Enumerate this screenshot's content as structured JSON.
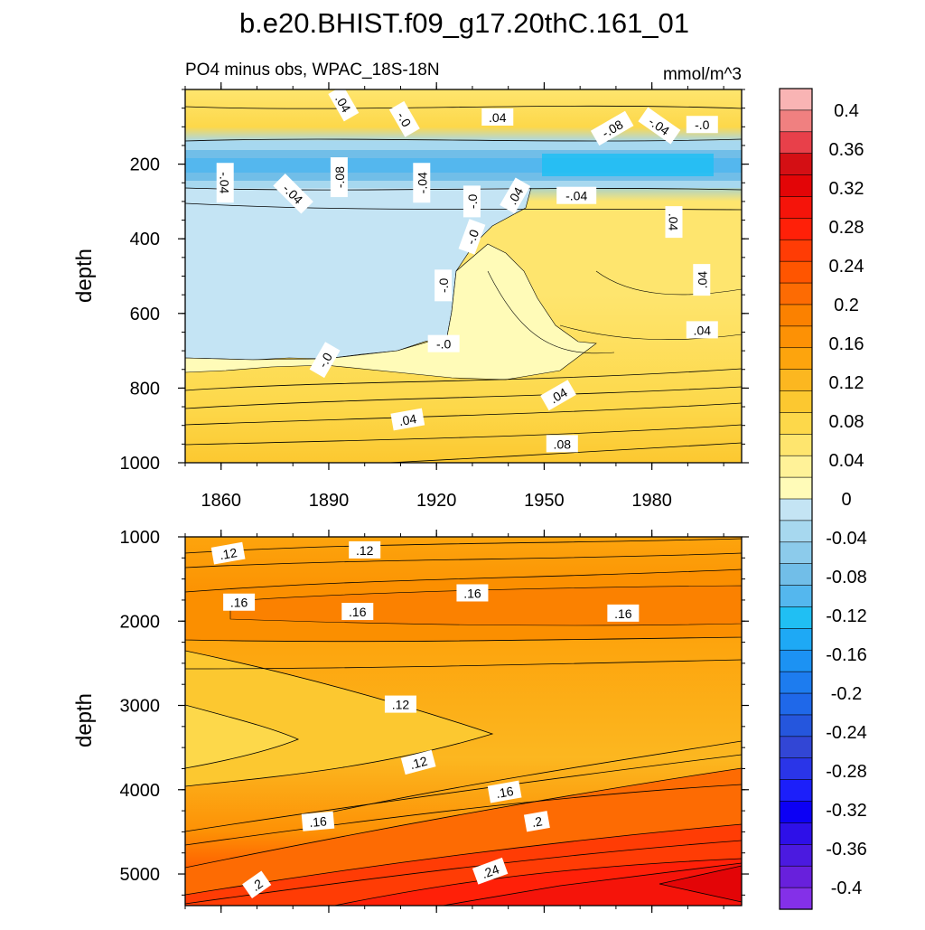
{
  "chart_data": [
    {
      "type": "heatmap",
      "title": "b.e20.BHIST.f09_g17.20thC.161_01",
      "subtitle_left": "PO4 minus obs, WPAC_18S-18N",
      "subtitle_right": "mmol/m^3",
      "xlabel": "",
      "ylabel": "depth",
      "xlim": [
        1850,
        2005
      ],
      "ylim": [
        0,
        1000
      ],
      "x_ticks": [
        1860,
        1890,
        1920,
        1950,
        1980
      ],
      "x_tick_labels": [
        "1860",
        "1890",
        "1920",
        "1950",
        "1980"
      ],
      "y_ticks": [
        200,
        400,
        600,
        800,
        1000
      ],
      "y_tick_labels": [
        "200",
        "400",
        "600",
        "800",
        "1000"
      ],
      "y_inverted": true,
      "contour_labels": [
        {
          "text": ".04",
          "x": 1894,
          "y": 38,
          "rotation": 60
        },
        {
          "text": "-.0",
          "x": 1911,
          "y": 80,
          "rotation": 60
        },
        {
          "text": ".04",
          "x": 1937,
          "y": 75,
          "rotation": 0
        },
        {
          "text": "-.08",
          "x": 1969,
          "y": 105,
          "rotation": -30
        },
        {
          "text": "-.04",
          "x": 1982,
          "y": 98,
          "rotation": 35
        },
        {
          "text": "-.0",
          "x": 1994,
          "y": 95,
          "rotation": 0
        },
        {
          "text": "-.04",
          "x": 1861,
          "y": 250,
          "rotation": 90
        },
        {
          "text": "-.04",
          "x": 1880,
          "y": 280,
          "rotation": 45
        },
        {
          "text": "-.08",
          "x": 1893,
          "y": 235,
          "rotation": -90
        },
        {
          "text": "-.04",
          "x": 1916,
          "y": 250,
          "rotation": -90
        },
        {
          "text": "-.0",
          "x": 1930,
          "y": 300,
          "rotation": -90
        },
        {
          "text": ".04",
          "x": 1942,
          "y": 285,
          "rotation": -60
        },
        {
          "text": "-.04",
          "x": 1959,
          "y": 285,
          "rotation": 0
        },
        {
          "text": ".04",
          "x": 1986,
          "y": 355,
          "rotation": 90
        },
        {
          "text": "-.0",
          "x": 1930,
          "y": 395,
          "rotation": -70
        },
        {
          "text": "-.0",
          "x": 1922,
          "y": 525,
          "rotation": -90
        },
        {
          "text": ".04",
          "x": 1994,
          "y": 510,
          "rotation": -90
        },
        {
          "text": "-.0",
          "x": 1922,
          "y": 682,
          "rotation": 0
        },
        {
          "text": ".04",
          "x": 1994,
          "y": 645,
          "rotation": 0
        },
        {
          "text": "-.0",
          "x": 1889,
          "y": 725,
          "rotation": -60
        },
        {
          "text": ".04",
          "x": 1954,
          "y": 820,
          "rotation": -30
        },
        {
          "text": ".04",
          "x": 1912,
          "y": 885,
          "rotation": -10
        },
        {
          "text": ".08",
          "x": 1955,
          "y": 950,
          "rotation": 0
        }
      ]
    },
    {
      "type": "heatmap",
      "xlabel": "",
      "ylabel": "depth",
      "xlim": [
        1850,
        2005
      ],
      "ylim": [
        1000,
        5375
      ],
      "x_ticks": [
        1860,
        1890,
        1920,
        1950,
        1980
      ],
      "y_ticks": [
        1000,
        2000,
        3000,
        4000,
        5000
      ],
      "y_tick_labels": [
        "1000",
        "2000",
        "3000",
        "4000",
        "5000"
      ],
      "y_inverted": true,
      "contour_labels": [
        {
          "text": ".12",
          "x": 1862,
          "y": 1200,
          "rotation": -10
        },
        {
          "text": ".12",
          "x": 1900,
          "y": 1160,
          "rotation": 0
        },
        {
          "text": ".16",
          "x": 1865,
          "y": 1780,
          "rotation": 0
        },
        {
          "text": ".16",
          "x": 1898,
          "y": 1890,
          "rotation": 0
        },
        {
          "text": ".16",
          "x": 1930,
          "y": 1670,
          "rotation": 0
        },
        {
          "text": ".16",
          "x": 1972,
          "y": 1910,
          "rotation": 0
        },
        {
          "text": ".12",
          "x": 1910,
          "y": 2990,
          "rotation": 0
        },
        {
          "text": ".12",
          "x": 1915,
          "y": 3680,
          "rotation": -15
        },
        {
          "text": ".16",
          "x": 1939,
          "y": 4030,
          "rotation": -10
        },
        {
          "text": ".16",
          "x": 1887,
          "y": 4380,
          "rotation": -5
        },
        {
          "text": ".2",
          "x": 1948,
          "y": 4380,
          "rotation": -10
        },
        {
          "text": ".24",
          "x": 1935,
          "y": 4970,
          "rotation": -20
        },
        {
          "text": ".2",
          "x": 1870,
          "y": 5130,
          "rotation": -35
        }
      ]
    },
    {
      "type": "colorbar",
      "tick_labels": [
        "0.4",
        "0.36",
        "0.32",
        "0.28",
        "0.24",
        "0.2",
        "0.16",
        "0.12",
        "0.08",
        "0.04",
        "0",
        "-0.04",
        "-0.08",
        "-0.12",
        "-0.16",
        "-0.2",
        "-0.24",
        "-0.28",
        "-0.32",
        "-0.36",
        "-0.4"
      ],
      "colors": [
        "#f9b4b4",
        "#f08080",
        "#e8404a",
        "#d40f14",
        "#e30507",
        "#f5140a",
        "#ff2008",
        "#ff3c05",
        "#ff5500",
        "#fd6b03",
        "#fb8100",
        "#fd9105",
        "#fda40d",
        "#fcb720",
        "#fcc830",
        "#fdd84a",
        "#fee56e",
        "#fff298",
        "#fffbb8",
        "#c4e4f4",
        "#a7d8ef",
        "#8ccbeb",
        "#71bee8",
        "#54b7ee",
        "#20bff3",
        "#1ea9f5",
        "#1c92f3",
        "#1d7cef",
        "#1f68e9",
        "#2556dd",
        "#3246d5",
        "#2a35e8",
        "#1c1ffa",
        "#0c00f5",
        "#2e10e8",
        "#4b1ae0",
        "#6820dc",
        "#8430e8"
      ]
    }
  ]
}
